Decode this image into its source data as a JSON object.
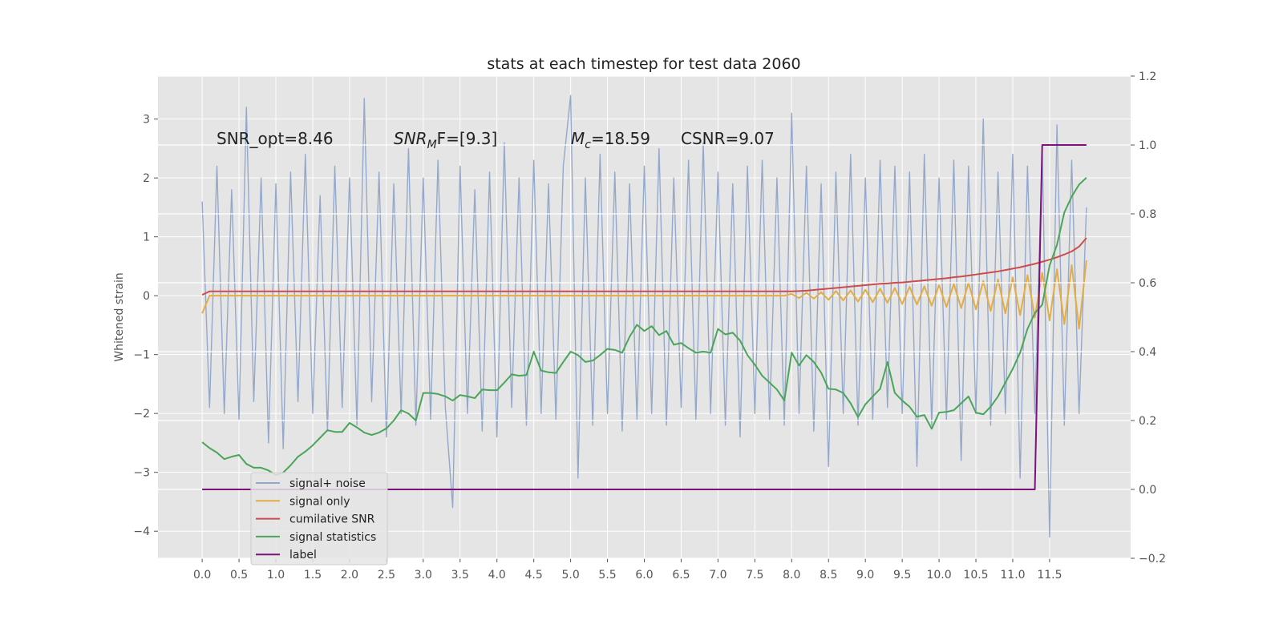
{
  "chart_data": {
    "type": "line",
    "title": "stats at each timestep for test data 2060",
    "ylabel": "Whitened strain",
    "annotations": [
      {
        "base": "SNR_opt=8.46"
      },
      {
        "base": "SNR",
        "sub": "M",
        "tail": "F=[9.3]",
        "italic": true
      },
      {
        "base": "M",
        "sub": "c",
        "tail": "=18.59",
        "italic": true
      },
      {
        "base": "CSNR=9.07"
      }
    ],
    "legend": "lower left",
    "grid": true,
    "xlim": [
      -0.6,
      12.6
    ],
    "ylim": [
      -4.46,
      3.73
    ],
    "y2lim": [
      -0.2,
      1.2
    ],
    "xticks": [
      {
        "value": 0,
        "label": "0.0"
      },
      0.5,
      {
        "value": 1,
        "label": "1.0"
      },
      1.5,
      {
        "value": 2,
        "label": "2.0"
      },
      2.5,
      {
        "value": 3,
        "label": "3.0"
      },
      3.5,
      {
        "value": 4,
        "label": "4.0"
      },
      4.5,
      {
        "value": 5,
        "label": "5.0"
      },
      5.5,
      {
        "value": 6,
        "label": "6.0"
      },
      6.5,
      {
        "value": 7,
        "label": "7.0"
      },
      7.5,
      {
        "value": 8,
        "label": "8.0"
      },
      8.5,
      {
        "value": 9,
        "label": "9.0"
      },
      9.5,
      {
        "value": 10,
        "label": "10.0"
      },
      10.5,
      {
        "value": 11,
        "label": "11.0"
      },
      11.5
    ],
    "yticks": [
      {
        "value": -4,
        "label": "−4"
      },
      {
        "value": -3,
        "label": "−3"
      },
      {
        "value": -2,
        "label": "−2"
      },
      {
        "value": -1,
        "label": "−1"
      },
      0,
      1,
      2,
      3
    ],
    "y2ticks": [
      {
        "value": -0.2,
        "label": "−0.2"
      },
      {
        "value": 0,
        "label": "0.0"
      },
      0.2,
      0.4,
      0.6,
      0.8,
      {
        "value": 1,
        "label": "1.0"
      },
      1.2
    ],
    "x": [
      0,
      0.1,
      0.2,
      0.3,
      0.4,
      0.5,
      0.6,
      0.7,
      0.8,
      0.9,
      1,
      1.1,
      1.2,
      1.3,
      1.4,
      1.5,
      1.6,
      1.7,
      1.8,
      1.9,
      2,
      2.1,
      2.2,
      2.3,
      2.4,
      2.5,
      2.6,
      2.7,
      2.8,
      2.9,
      3,
      3.1,
      3.2,
      3.3,
      3.4,
      3.5,
      3.6,
      3.7,
      3.8,
      3.9,
      4,
      4.1,
      4.2,
      4.3,
      4.4,
      4.5,
      4.6,
      4.7,
      4.8,
      4.9,
      5,
      5.1,
      5.2,
      5.3,
      5.4,
      5.5,
      5.6,
      5.7,
      5.8,
      5.9,
      6,
      6.1,
      6.2,
      6.3,
      6.4,
      6.5,
      6.6,
      6.7,
      6.8,
      6.9,
      7,
      7.1,
      7.2,
      7.3,
      7.4,
      7.5,
      7.6,
      7.7,
      7.8,
      7.9,
      8,
      8.1,
      8.2,
      8.3,
      8.4,
      8.5,
      8.6,
      8.7,
      8.8,
      8.9,
      9,
      9.1,
      9.2,
      9.3,
      9.4,
      9.5,
      9.6,
      9.7,
      9.8,
      9.9,
      10,
      10.1,
      10.2,
      10.3,
      10.4,
      10.5,
      10.6,
      10.7,
      10.8,
      10.9,
      11,
      11.1,
      11.2,
      11.3,
      11.4,
      11.5,
      11.6,
      11.7,
      11.8,
      11.9,
      12
    ],
    "series": [
      {
        "name": "signal+ noise",
        "color": "#94a8cc",
        "values": [
          1.6,
          -1.9,
          2.2,
          -2.0,
          1.8,
          -2.1,
          3.2,
          -1.8,
          2.0,
          -2.5,
          1.9,
          -2.6,
          2.1,
          -1.8,
          2.4,
          -2.0,
          1.7,
          -2.3,
          2.2,
          -1.9,
          2.0,
          -2.2,
          3.35,
          -1.8,
          2.1,
          -2.4,
          1.9,
          -2.0,
          2.5,
          -2.2,
          2.0,
          -2.1,
          2.3,
          -1.9,
          -3.6,
          2.2,
          -2.0,
          1.8,
          -2.3,
          2.1,
          -2.4,
          2.6,
          -1.9,
          2.0,
          -2.2,
          2.3,
          -2.0,
          1.9,
          -2.1,
          2.2,
          3.4,
          -3.1,
          2.0,
          -2.2,
          2.4,
          -2.0,
          2.1,
          -2.3,
          1.9,
          -2.1,
          2.2,
          -2.0,
          2.5,
          -2.2,
          2.0,
          -1.9,
          2.3,
          -2.1,
          2.6,
          -2.0,
          2.1,
          -2.2,
          1.9,
          -2.4,
          2.2,
          -2.0,
          2.3,
          -2.1,
          2.0,
          -2.2,
          3.1,
          -2.0,
          2.2,
          -2.3,
          1.9,
          -2.9,
          2.1,
          -2.0,
          2.4,
          -2.2,
          2.0,
          -2.1,
          2.3,
          -1.9,
          2.2,
          -2.0,
          2.1,
          -2.9,
          2.4,
          -2.2,
          2.0,
          -2.1,
          2.3,
          -2.8,
          2.2,
          -2.0,
          3.0,
          -2.2,
          2.1,
          -2.0,
          2.4,
          -3.1,
          2.2,
          -2.0,
          2.5,
          -4.1,
          2.9,
          -2.2,
          2.3,
          -2.0,
          1.5
        ]
      },
      {
        "name": "signal only",
        "color": "#e3ad45",
        "values": [
          -0.3,
          0,
          0,
          0,
          0,
          0,
          0,
          0,
          0,
          0,
          0,
          0,
          0,
          0,
          0,
          0,
          0,
          0,
          0,
          0,
          0,
          0,
          0,
          0,
          0,
          0,
          0,
          0,
          0,
          0,
          0,
          0,
          0,
          0,
          0,
          0,
          0,
          0,
          0,
          0,
          0,
          0,
          0,
          0,
          0,
          0,
          0,
          0,
          0,
          0,
          0,
          0,
          0,
          0,
          0,
          0,
          0,
          0,
          0,
          0,
          0,
          0,
          0,
          0,
          0,
          0,
          0,
          0,
          0,
          0,
          0,
          0,
          0,
          0,
          0,
          0,
          0,
          0,
          0,
          0,
          0.03,
          -0.04,
          0.05,
          -0.05,
          0.06,
          -0.07,
          0.08,
          -0.08,
          0.09,
          -0.1,
          0.1,
          -0.11,
          0.12,
          -0.12,
          0.13,
          -0.14,
          0.15,
          -0.15,
          0.16,
          -0.17,
          0.18,
          -0.19,
          0.2,
          -0.21,
          0.22,
          -0.23,
          0.25,
          -0.26,
          0.28,
          -0.3,
          0.31,
          -0.33,
          0.35,
          -0.37,
          0.39,
          -0.42,
          0.45,
          -0.48,
          0.52,
          -0.56,
          0.6
        ]
      },
      {
        "name": "cumilative SNR",
        "color": "#cf4b4b",
        "axis": "y2",
        "values": [
          0.565,
          0.575,
          0.575,
          0.575,
          0.575,
          0.575,
          0.575,
          0.575,
          0.575,
          0.575,
          0.575,
          0.575,
          0.575,
          0.575,
          0.575,
          0.575,
          0.575,
          0.575,
          0.575,
          0.575,
          0.575,
          0.575,
          0.575,
          0.575,
          0.575,
          0.575,
          0.575,
          0.575,
          0.575,
          0.575,
          0.575,
          0.575,
          0.575,
          0.575,
          0.575,
          0.575,
          0.575,
          0.575,
          0.575,
          0.575,
          0.575,
          0.575,
          0.575,
          0.575,
          0.575,
          0.575,
          0.575,
          0.575,
          0.575,
          0.575,
          0.575,
          0.575,
          0.575,
          0.575,
          0.575,
          0.575,
          0.575,
          0.575,
          0.575,
          0.575,
          0.575,
          0.575,
          0.575,
          0.575,
          0.575,
          0.575,
          0.575,
          0.575,
          0.575,
          0.575,
          0.575,
          0.575,
          0.575,
          0.575,
          0.575,
          0.575,
          0.575,
          0.575,
          0.575,
          0.575,
          0.575,
          0.576,
          0.577,
          0.579,
          0.581,
          0.583,
          0.585,
          0.587,
          0.589,
          0.591,
          0.593,
          0.595,
          0.597,
          0.598,
          0.6,
          0.601,
          0.603,
          0.605,
          0.607,
          0.609,
          0.611,
          0.613,
          0.616,
          0.618,
          0.621,
          0.624,
          0.627,
          0.63,
          0.633,
          0.637,
          0.641,
          0.645,
          0.65,
          0.655,
          0.661,
          0.667,
          0.674,
          0.682,
          0.691,
          0.705,
          0.73
        ]
      },
      {
        "name": "signal statistics",
        "color": "#4aa55a",
        "axis": "y2",
        "values": [
          0.137,
          0.12,
          0.107,
          0.088,
          0.095,
          0.1,
          0.074,
          0.063,
          0.063,
          0.055,
          0.042,
          0.049,
          0.07,
          0.095,
          0.11,
          0.128,
          0.15,
          0.172,
          0.167,
          0.167,
          0.193,
          0.18,
          0.165,
          0.158,
          0.165,
          0.177,
          0.2,
          0.23,
          0.22,
          0.2,
          0.28,
          0.28,
          0.277,
          0.27,
          0.258,
          0.274,
          0.27,
          0.265,
          0.29,
          0.288,
          0.288,
          0.31,
          0.334,
          0.33,
          0.332,
          0.4,
          0.345,
          0.34,
          0.338,
          0.37,
          0.4,
          0.39,
          0.37,
          0.374,
          0.39,
          0.408,
          0.405,
          0.397,
          0.443,
          0.478,
          0.46,
          0.474,
          0.448,
          0.46,
          0.42,
          0.425,
          0.41,
          0.397,
          0.4,
          0.397,
          0.466,
          0.45,
          0.455,
          0.432,
          0.39,
          0.362,
          0.33,
          0.31,
          0.29,
          0.258,
          0.397,
          0.36,
          0.39,
          0.37,
          0.339,
          0.292,
          0.29,
          0.28,
          0.25,
          0.21,
          0.247,
          0.27,
          0.292,
          0.37,
          0.28,
          0.258,
          0.24,
          0.211,
          0.216,
          0.176,
          0.223,
          0.225,
          0.23,
          0.25,
          0.27,
          0.223,
          0.218,
          0.24,
          0.27,
          0.31,
          0.35,
          0.397,
          0.466,
          0.512,
          0.536,
          0.65,
          0.71,
          0.804,
          0.85,
          0.885,
          0.905
        ]
      },
      {
        "name": "label",
        "color": "#7b137b",
        "axis": "y2",
        "values": [
          0,
          0,
          0,
          0,
          0,
          0,
          0,
          0,
          0,
          0,
          0,
          0,
          0,
          0,
          0,
          0,
          0,
          0,
          0,
          0,
          0,
          0,
          0,
          0,
          0,
          0,
          0,
          0,
          0,
          0,
          0,
          0,
          0,
          0,
          0,
          0,
          0,
          0,
          0,
          0,
          0,
          0,
          0,
          0,
          0,
          0,
          0,
          0,
          0,
          0,
          0,
          0,
          0,
          0,
          0,
          0,
          0,
          0,
          0,
          0,
          0,
          0,
          0,
          0,
          0,
          0,
          0,
          0,
          0,
          0,
          0,
          0,
          0,
          0,
          0,
          0,
          0,
          0,
          0,
          0,
          0,
          0,
          0,
          0,
          0,
          0,
          0,
          0,
          0,
          0,
          0,
          0,
          0,
          0,
          0,
          0,
          0,
          0,
          0,
          0,
          0,
          0,
          0,
          0,
          0,
          0,
          0,
          0,
          0,
          0,
          0,
          0,
          0,
          0,
          1,
          1,
          1,
          1,
          1,
          1,
          1
        ]
      }
    ]
  }
}
